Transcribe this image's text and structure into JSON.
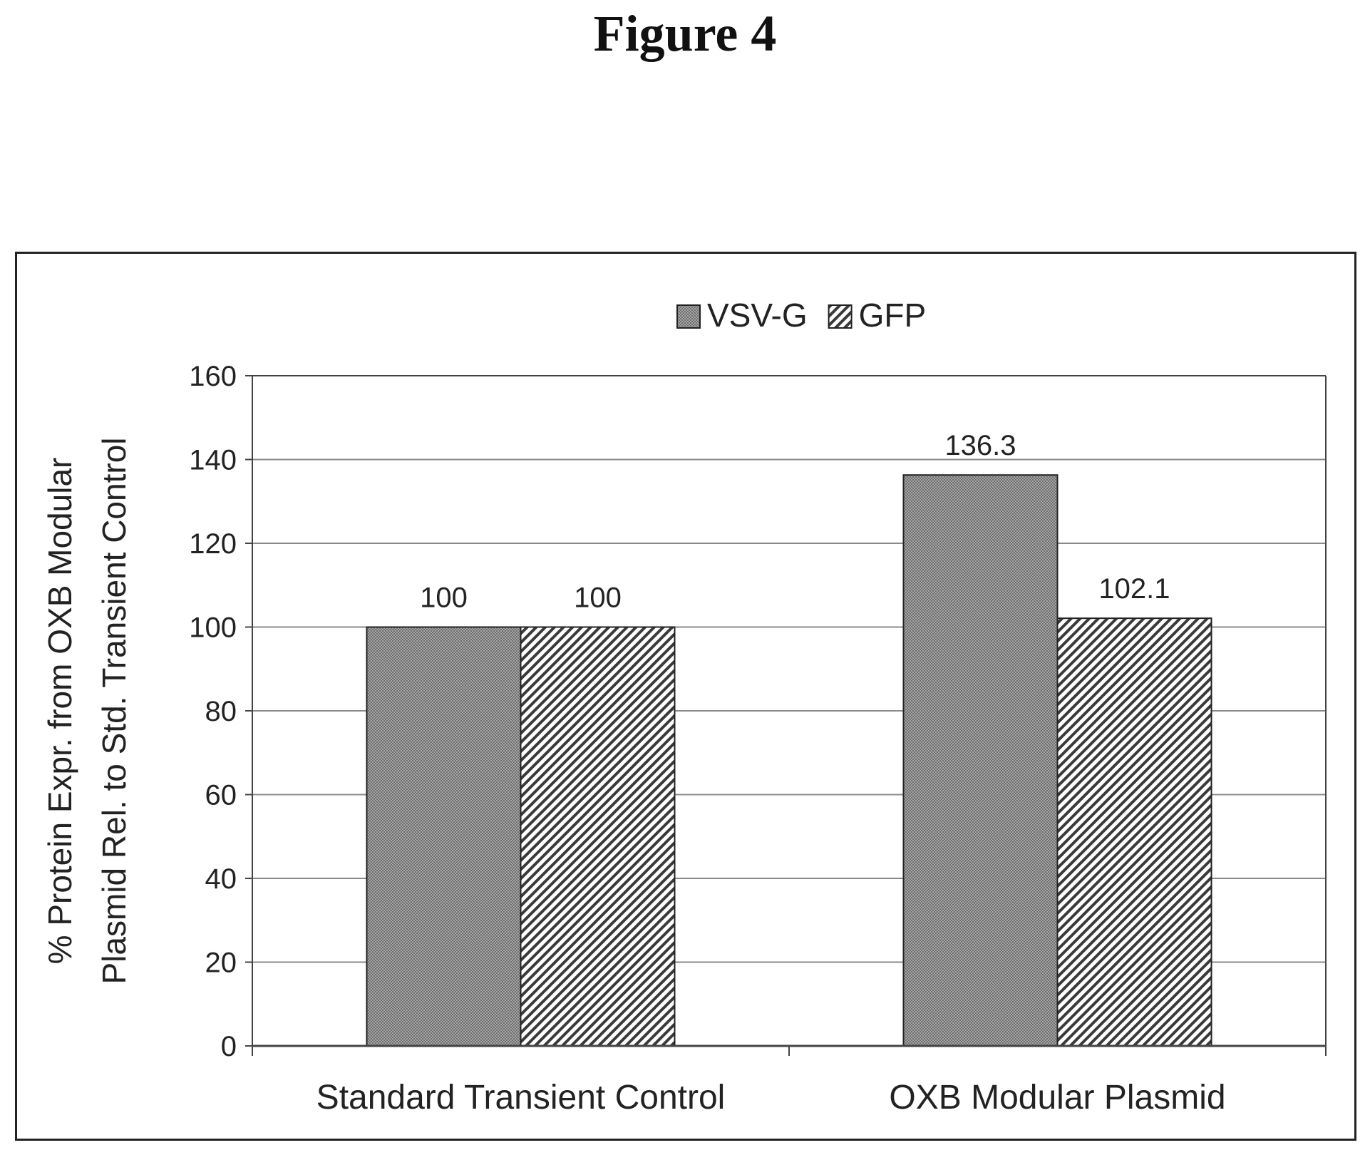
{
  "figure": {
    "title": "Figure 4"
  },
  "chart_data": {
    "type": "bar",
    "categories": [
      "Standard Transient Control",
      "OXB Modular Plasmid"
    ],
    "series": [
      {
        "name": "VSV-G",
        "values": [
          100,
          136.3
        ],
        "color": "#9a9a9a",
        "pattern": "fine-stipple"
      },
      {
        "name": "GFP",
        "values": [
          100,
          102.1
        ],
        "color": "#ffffff",
        "pattern": "diagonal-hatch"
      }
    ],
    "data_labels": [
      [
        "100",
        "136.3"
      ],
      [
        "100",
        "102.1"
      ]
    ],
    "ylabel_lines": [
      "% Protein Expr. from OXB Modular",
      "Plasmid Rel. to Std. Transient Control"
    ],
    "xlabel": "",
    "ylim": [
      0,
      160
    ],
    "yticks": [
      0,
      20,
      40,
      60,
      80,
      100,
      120,
      140,
      160
    ],
    "grid": true,
    "legend_position": "top-center"
  }
}
